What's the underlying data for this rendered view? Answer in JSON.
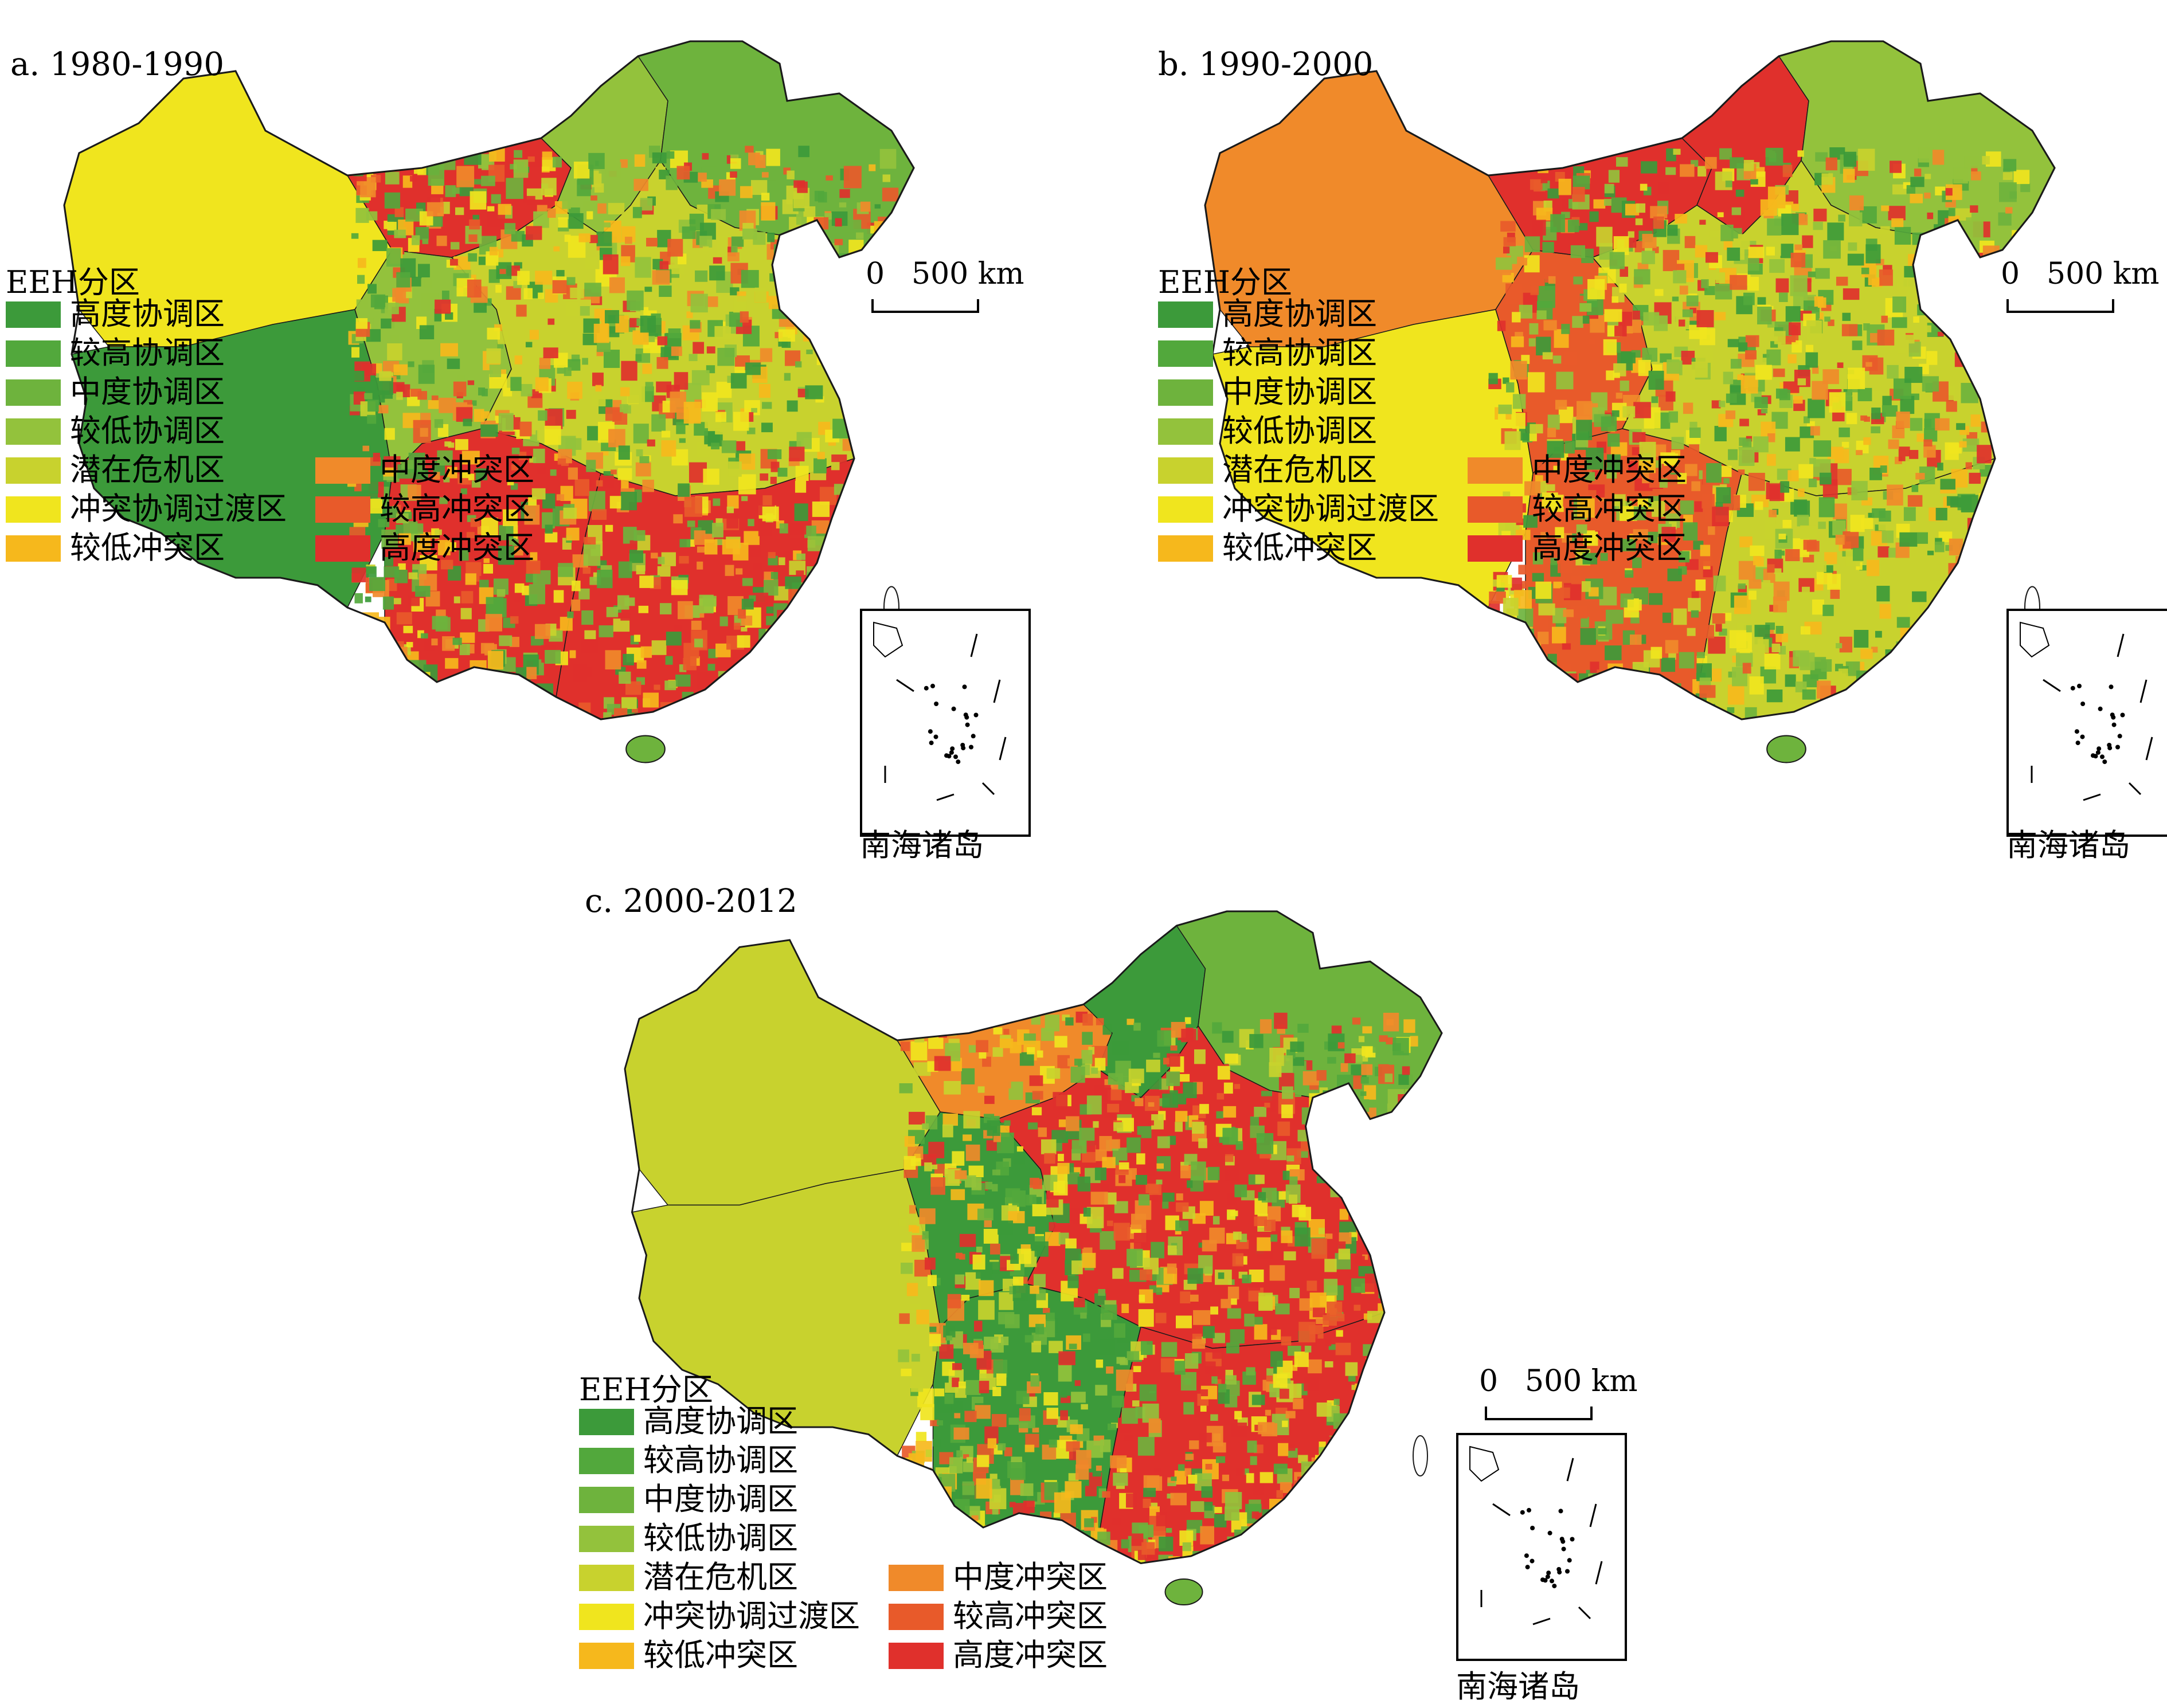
{
  "colors": {
    "high_coord": "#3c9a3a",
    "higher_coord": "#52a83c",
    "mid_coord": "#6eb33d",
    "lower_coord": "#93c23c",
    "potential_crisis": "#c8d22e",
    "transition": "#f0e51e",
    "low_conflict": "#f6b81c",
    "mid_conflict": "#f08a2a",
    "higher_conflict": "#e85a2a",
    "high_conflict": "#e0302c",
    "boundary": "#1a1a1a"
  },
  "legend": {
    "title": "EEH分区",
    "items": [
      {
        "label": "高度协调区",
        "color_key": "high_coord"
      },
      {
        "label": "较高协调区",
        "color_key": "higher_coord"
      },
      {
        "label": "中度协调区",
        "color_key": "mid_coord"
      },
      {
        "label": "较低协调区",
        "color_key": "lower_coord"
      },
      {
        "label": "潜在危机区",
        "color_key": "potential_crisis"
      },
      {
        "label": "冲突协调过渡区",
        "color_key": "transition"
      },
      {
        "label": "较低冲突区",
        "color_key": "low_conflict"
      },
      {
        "label": "中度冲突区",
        "color_key": "mid_conflict"
      },
      {
        "label": "较高冲突区",
        "color_key": "higher_conflict"
      },
      {
        "label": "高度冲突区",
        "color_key": "high_conflict"
      }
    ]
  },
  "scalebar": {
    "zero": "0",
    "label": "500 km"
  },
  "inset_label": "南海诸岛",
  "panels": [
    {
      "title": "a. 1980-1990",
      "regions": {
        "northwest": "transition",
        "tibet": "high_coord",
        "qinghai": "lower_coord",
        "inner_mongolia_w": "high_conflict",
        "inner_mongolia_e": "lower_coord",
        "northeast": "mid_coord",
        "central": "potential_crisis",
        "south": "high_conflict",
        "southwest": "high_conflict"
      }
    },
    {
      "title": "b. 1990-2000",
      "regions": {
        "northwest": "mid_conflict",
        "tibet": "transition",
        "qinghai": "higher_conflict",
        "inner_mongolia_w": "high_conflict",
        "inner_mongolia_e": "high_conflict",
        "northeast": "lower_coord",
        "central": "potential_crisis",
        "south": "potential_crisis",
        "southwest": "higher_conflict"
      }
    },
    {
      "title": "c. 2000-2012",
      "regions": {
        "northwest": "potential_crisis",
        "tibet": "potential_crisis",
        "qinghai": "high_coord",
        "inner_mongolia_w": "mid_conflict",
        "inner_mongolia_e": "high_coord",
        "northeast": "mid_coord",
        "central": "high_conflict",
        "south": "high_conflict",
        "southwest": "high_coord"
      }
    }
  ]
}
